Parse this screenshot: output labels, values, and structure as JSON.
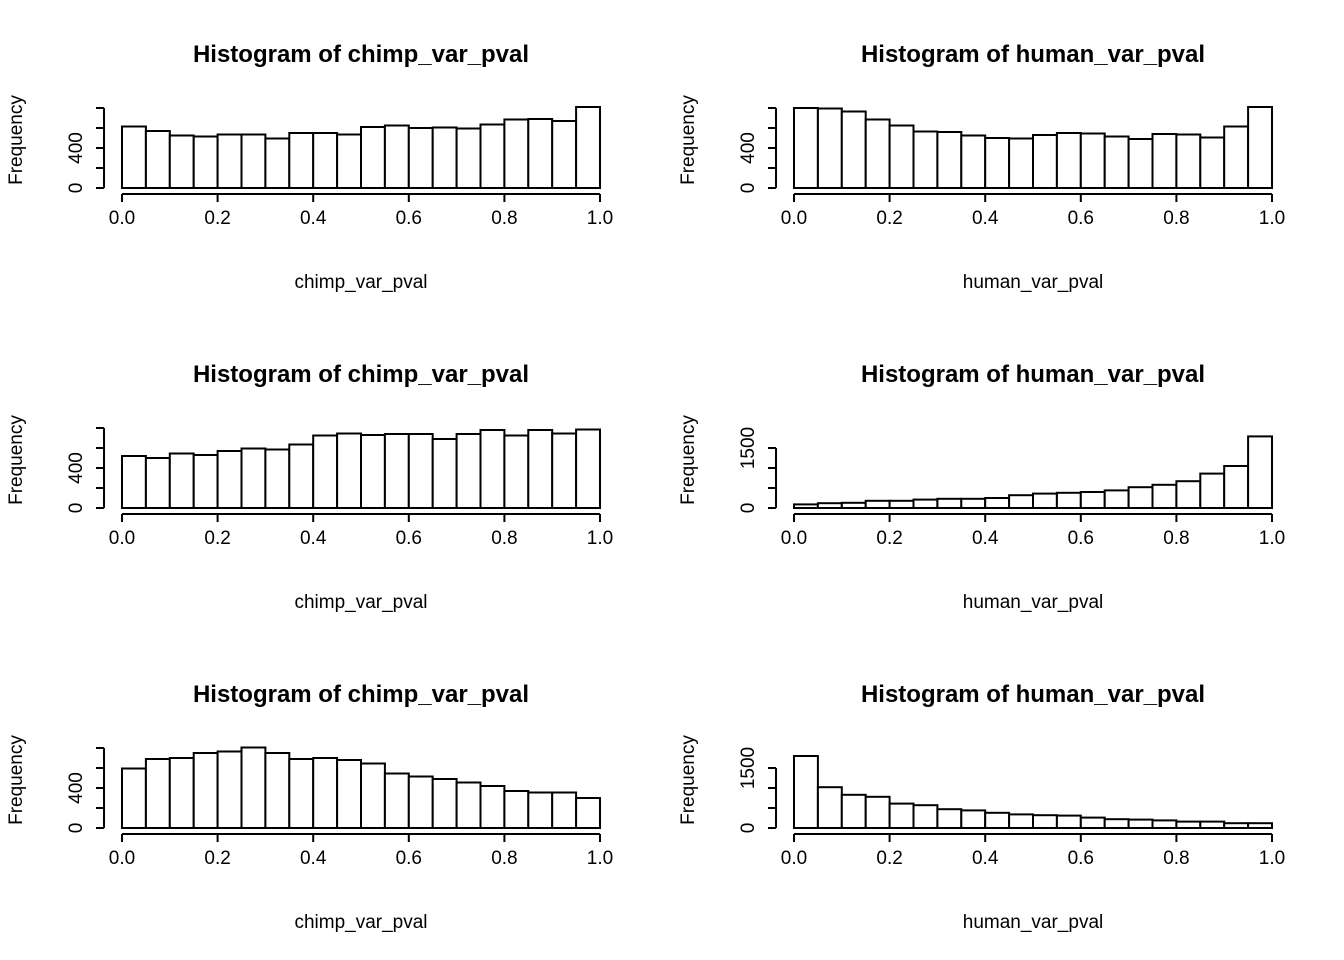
{
  "chart_data": [
    {
      "type": "bar",
      "title": "Histogram of chimp_var_pval",
      "xlabel": "chimp_var_pval",
      "ylabel": "Frequency",
      "xlim": [
        0,
        1
      ],
      "ylim": [
        0,
        800
      ],
      "bin_width": 0.05,
      "xticks": [
        "0.0",
        "0.2",
        "0.4",
        "0.6",
        "0.8",
        "1.0"
      ],
      "yticks": [
        "0",
        "400"
      ],
      "ytick_values": [
        0,
        200,
        400,
        600,
        800
      ],
      "values": [
        615,
        570,
        525,
        515,
        535,
        535,
        495,
        550,
        550,
        535,
        610,
        625,
        600,
        605,
        595,
        635,
        685,
        690,
        670,
        810
      ]
    },
    {
      "type": "bar",
      "title": "Histogram of human_var_pval",
      "xlabel": "human_var_pval",
      "ylabel": "Frequency",
      "xlim": [
        0,
        1
      ],
      "ylim": [
        0,
        800
      ],
      "bin_width": 0.05,
      "xticks": [
        "0.0",
        "0.2",
        "0.4",
        "0.6",
        "0.8",
        "1.0"
      ],
      "yticks": [
        "0",
        "400"
      ],
      "ytick_values": [
        0,
        200,
        400,
        600,
        800
      ],
      "values": [
        800,
        795,
        765,
        685,
        625,
        565,
        560,
        525,
        500,
        495,
        530,
        550,
        545,
        515,
        490,
        540,
        535,
        505,
        615,
        810
      ]
    },
    {
      "type": "bar",
      "title": "Histogram of chimp_var_pval",
      "xlabel": "chimp_var_pval",
      "ylabel": "Frequency",
      "xlim": [
        0,
        1
      ],
      "ylim": [
        0,
        800
      ],
      "bin_width": 0.05,
      "xticks": [
        "0.0",
        "0.2",
        "0.4",
        "0.6",
        "0.8",
        "1.0"
      ],
      "yticks": [
        "0",
        "400"
      ],
      "ytick_values": [
        0,
        200,
        400,
        600,
        800
      ],
      "values": [
        520,
        500,
        545,
        530,
        570,
        595,
        585,
        635,
        725,
        745,
        730,
        740,
        740,
        690,
        740,
        780,
        725,
        780,
        745,
        785
      ]
    },
    {
      "type": "bar",
      "title": "Histogram of human_var_pval",
      "xlabel": "human_var_pval",
      "ylabel": "Frequency",
      "xlim": [
        0,
        1
      ],
      "ylim": [
        0,
        2000
      ],
      "bin_width": 0.05,
      "xticks": [
        "0.0",
        "0.2",
        "0.4",
        "0.6",
        "0.8",
        "1.0"
      ],
      "yticks": [
        "0",
        "1500"
      ],
      "ytick_values": [
        0,
        500,
        1000,
        1500
      ],
      "values": [
        90,
        120,
        130,
        180,
        180,
        210,
        230,
        230,
        250,
        320,
        360,
        380,
        400,
        440,
        520,
        580,
        670,
        860,
        1050,
        1790
      ]
    },
    {
      "type": "bar",
      "title": "Histogram of chimp_var_pval",
      "xlabel": "chimp_var_pval",
      "ylabel": "Frequency",
      "xlim": [
        0,
        1
      ],
      "ylim": [
        0,
        800
      ],
      "bin_width": 0.05,
      "xticks": [
        "0.0",
        "0.2",
        "0.4",
        "0.6",
        "0.8",
        "1.0"
      ],
      "yticks": [
        "0",
        "400"
      ],
      "ytick_values": [
        0,
        200,
        400,
        600,
        800
      ],
      "values": [
        595,
        690,
        700,
        750,
        765,
        805,
        750,
        690,
        700,
        680,
        645,
        545,
        515,
        490,
        455,
        420,
        370,
        355,
        355,
        300
      ]
    },
    {
      "type": "bar",
      "title": "Histogram of human_var_pval",
      "xlabel": "human_var_pval",
      "ylabel": "Frequency",
      "xlim": [
        0,
        1
      ],
      "ylim": [
        0,
        2000
      ],
      "bin_width": 0.05,
      "xticks": [
        "0.0",
        "0.2",
        "0.4",
        "0.6",
        "0.8",
        "1.0"
      ],
      "yticks": [
        "0",
        "1500"
      ],
      "ytick_values": [
        0,
        500,
        1000,
        1500
      ],
      "values": [
        1800,
        1020,
        830,
        780,
        610,
        570,
        470,
        440,
        380,
        340,
        320,
        310,
        260,
        220,
        210,
        190,
        160,
        160,
        120,
        120
      ]
    }
  ]
}
